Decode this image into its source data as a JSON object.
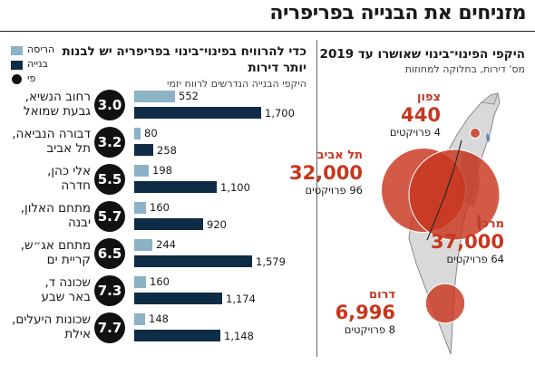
{
  "header": {
    "title": "מזניחים את הבנייה בפריפריה"
  },
  "left_panel": {
    "title_line1": "כדי להרוויח בפינוי־בינוי בפריפריה יש לבנות",
    "title_line2": "יותר דירות",
    "subtitle": "היקפי הבנייה הנדרשים לרווח יזמי"
  },
  "legend": [
    {
      "label": "הריסה",
      "color": "#8cb2c6",
      "shape": "square"
    },
    {
      "label": "בנייה",
      "color": "#0e2c45",
      "shape": "square"
    },
    {
      "label": "פי",
      "color": "#111111",
      "shape": "circle"
    }
  ],
  "right_panel": {
    "title": "היקפי הפינוי־בינוי שאושרו עד 2019",
    "subtitle": "מס' דירות, בחלוקה למחוזות"
  },
  "chart_data": [
    {
      "type": "bar",
      "orientation": "horizontal",
      "title": "כדי להרוויח בפינוי־בינוי בפריפריה יש לבנות יותר דירות",
      "subtitle": "היקפי הבנייה הנדרשים לרווח יזמי",
      "categories": [
        {
          "line1": "רחוב הנשיא,",
          "line2": "גבעת שמואל"
        },
        {
          "line1": "דבורה הנביאה,",
          "line2": "תל אביב"
        },
        {
          "line1": "אלי כהן,",
          "line2": "חדרה"
        },
        {
          "line1": "מתחם האלון,",
          "line2": "יבנה"
        },
        {
          "line1": "מתחם אג״ש,",
          "line2": "קריית ים"
        },
        {
          "line1": "שכונה ד,",
          "line2": "באר שבע"
        },
        {
          "line1": "שכונות היעלים,",
          "line2": "אילת"
        }
      ],
      "series": [
        {
          "name": "הריסה",
          "color": "#8cb2c6",
          "values": [
            552,
            80,
            198,
            160,
            244,
            160,
            148
          ]
        },
        {
          "name": "בנייה",
          "color": "#0e2c45",
          "values": [
            1700,
            258,
            1100,
            920,
            1579,
            1174,
            1148
          ]
        }
      ],
      "value_labels": {
        "demolition": [
          "552",
          "80",
          "198",
          "160",
          "244",
          "160",
          "148"
        ],
        "construction": [
          "1,700",
          "258",
          "1,100",
          "920",
          "1,579",
          "1,174",
          "1,148"
        ]
      },
      "ratio": [
        "3.0",
        "3.2",
        "5.5",
        "5.7",
        "6.5",
        "7.3",
        "7.7"
      ],
      "xlim": [
        0,
        1700
      ],
      "legend": "top-left"
    },
    {
      "type": "bubble-map",
      "title": "היקפי הפינוי־בינוי שאושרו עד 2019",
      "subtitle": "מס' דירות, בחלוקה למחוזות",
      "regions": [
        {
          "name": "צפון",
          "units": 440,
          "units_label": "440",
          "projects_label": "4 פרויקטים",
          "color": "#c8361e"
        },
        {
          "name": "תל אביב",
          "units": 32000,
          "units_label": "32,000",
          "projects_label": "96 פרויקטים",
          "color": "#c8361e"
        },
        {
          "name": "מרכז",
          "units": 37000,
          "units_label": "37,000",
          "projects_label": "64 פרויקטים",
          "color": "#c8361e"
        },
        {
          "name": "דרום",
          "units": 6996,
          "units_label": "6,996",
          "projects_label": "8 פרויקטים",
          "color": "#c8361e"
        }
      ]
    }
  ]
}
